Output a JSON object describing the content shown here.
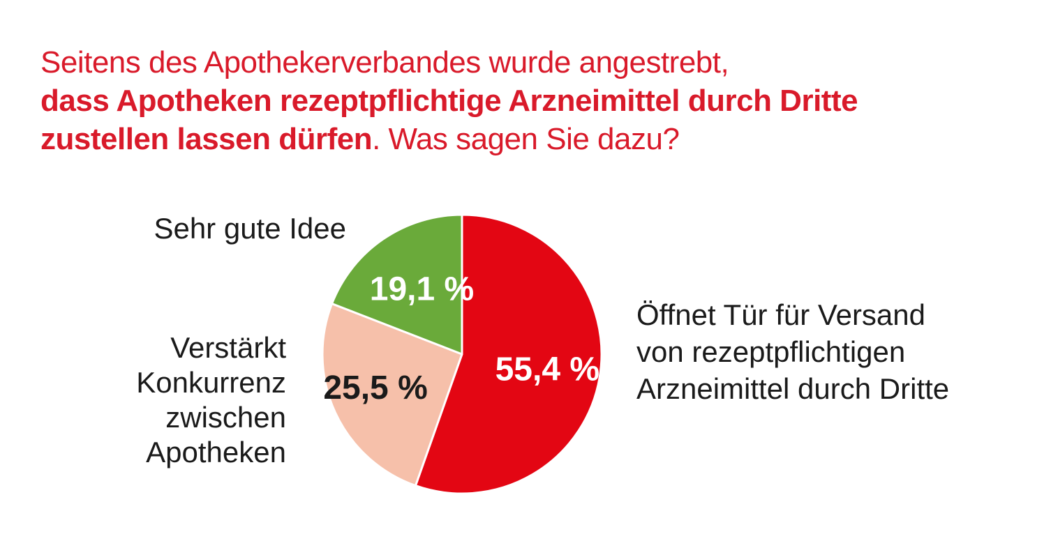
{
  "header": {
    "title_part1": "Seitens des Apothekerverbandes wurde angestrebt,",
    "title_part2": "dass Apotheken rezeptpflichtige Arzneimittel durch Dritte",
    "title_part3_bold": "zustellen lassen dürfen",
    "title_part3_rest": ". Was sagen Sie dazu?"
  },
  "colors": {
    "title": "#d91a2a",
    "red": "#e30613",
    "green": "#6aaa3a",
    "peach": "#f6c0aa"
  },
  "chart_data": {
    "type": "pie",
    "start_angle_deg": 0,
    "direction": "clockwise",
    "slices": [
      {
        "label_lines": [
          "Öffnet Tür für Versand",
          "von rezeptpflichtigen",
          "Arzneimittel durch Dritte"
        ],
        "value": 55.4,
        "value_label": "55,4 %",
        "color": "#e30613",
        "value_text_color": "#ffffff"
      },
      {
        "label_lines": [
          "Verstärkt",
          "Konkurrenz",
          "zwischen",
          "Apotheken"
        ],
        "value": 25.5,
        "value_label": "25,5 %",
        "color": "#f6c0aa",
        "value_text_color": "#1a1a1a"
      },
      {
        "label_lines": [
          "Sehr gute Idee"
        ],
        "value": 19.1,
        "value_label": "19,1 %",
        "color": "#6aaa3a",
        "value_text_color": "#ffffff"
      }
    ]
  }
}
